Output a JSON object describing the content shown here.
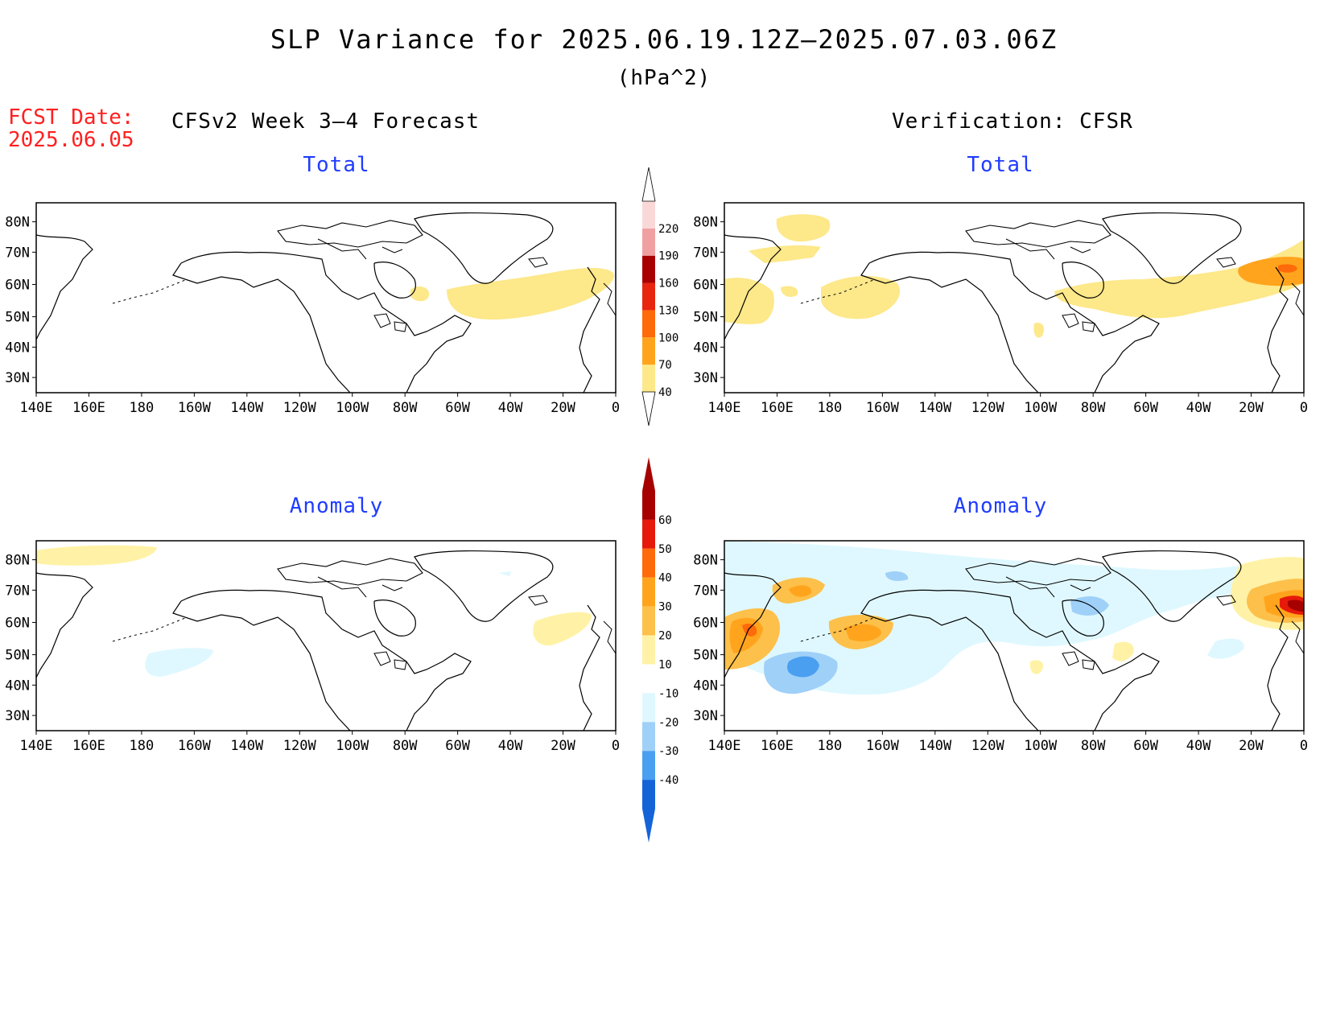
{
  "title": "SLP Variance for 2025.06.19.12Z—2025.07.03.06Z",
  "units": "(hPa^2)",
  "fcst_label": "FCST Date:",
  "fcst_date": "2025.06.05",
  "left_header": "CFSv2 Week 3—4 Forecast",
  "right_header": "Verification: CFSR",
  "panel_titles": {
    "total": "Total",
    "anomaly": "Anomaly"
  },
  "chart_data": {
    "type": "heatmap",
    "lon_ticks": [
      "140E",
      "160E",
      "180",
      "160W",
      "140W",
      "120W",
      "100W",
      "80W",
      "60W",
      "40W",
      "20W",
      "0"
    ],
    "lat_ticks": [
      "80N",
      "70N",
      "60N",
      "50N",
      "40N",
      "30N"
    ],
    "total_colorbar": {
      "levels": [
        "40",
        "70",
        "100",
        "130",
        "160",
        "190",
        "220"
      ],
      "colors": [
        "#fde88a",
        "#ffa41c",
        "#ff6a0a",
        "#e8250f",
        "#a80000",
        "#f0a0a0",
        "#fbd8d8"
      ]
    },
    "anomaly_colorbar": {
      "levels": [
        "60",
        "50",
        "40",
        "30",
        "20",
        "10",
        "-10",
        "-20",
        "-30",
        "-40"
      ],
      "colors": [
        "#a60000",
        "#e61a0a",
        "#ff6a0a",
        "#ffa41c",
        "#fdc04a",
        "#fff2a6",
        "#ffffff",
        "#dff8ff",
        "#9fd0f8",
        "#4a9ff0",
        "#1464d8"
      ]
    },
    "panels": [
      {
        "name": "forecast-total",
        "source": "CFSv2 Week 3-4 Forecast",
        "field": "Total",
        "max_range": "40-70"
      },
      {
        "name": "verification-total",
        "source": "CFSR",
        "field": "Total",
        "max_range": "100-130"
      },
      {
        "name": "forecast-anomaly",
        "source": "CFSv2 Week 3-4 Forecast",
        "field": "Anomaly",
        "range": "-20 to 20"
      },
      {
        "name": "verification-anomaly",
        "source": "CFSR",
        "field": "Anomaly",
        "range": "-40 to 60"
      }
    ]
  }
}
